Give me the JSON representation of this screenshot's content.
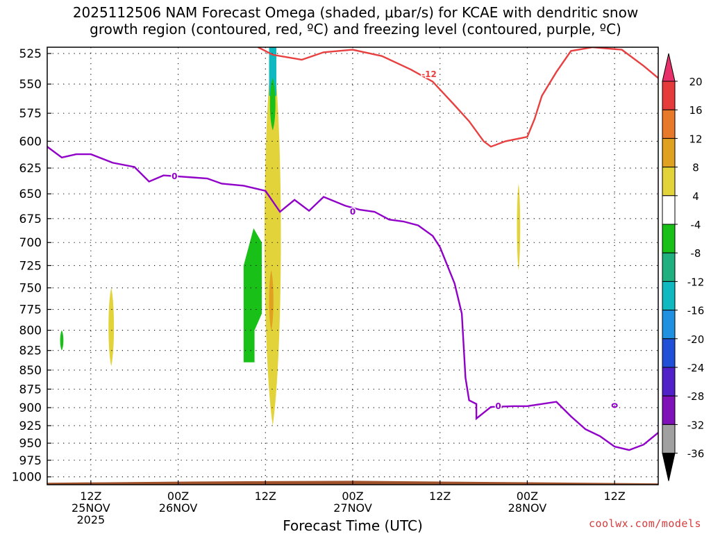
{
  "title": {
    "line1": "2025112506 NAM Forecast Omega (shaded, μbar/s) for KCAE with dendritic snow",
    "line2": "growth region (contoured, red, ºC) and freezing level (contoured, purple, ºC)"
  },
  "watermark": "coolwx.com/models",
  "chart_data": {
    "type": "time-height cross section",
    "title": "2025112506 NAM Forecast Omega (shaded, μbar/s) for KCAE with dendritic snow growth region (contoured, red, ºC) and freezing level (contoured, purple, ºC)",
    "xlabel": "Forecast Time (UTC)",
    "ylabel": "",
    "x_range_hours": [
      0,
      84
    ],
    "y_axis": {
      "scale": "pressure (hPa), inverted",
      "range": [
        1000,
        525
      ]
    },
    "y_ticks": [
      525,
      550,
      575,
      600,
      625,
      650,
      675,
      700,
      725,
      750,
      775,
      800,
      825,
      850,
      875,
      900,
      925,
      950,
      975,
      1000
    ],
    "x_ticks": [
      {
        "hour": 6,
        "lines": [
          "12Z",
          "25NOV",
          "2025"
        ]
      },
      {
        "hour": 18,
        "lines": [
          "00Z",
          "26NOV"
        ]
      },
      {
        "hour": 30,
        "lines": [
          "12Z"
        ]
      },
      {
        "hour": 42,
        "lines": [
          "00Z",
          "27NOV"
        ]
      },
      {
        "hour": 54,
        "lines": [
          "12Z"
        ]
      },
      {
        "hour": 66,
        "lines": [
          "00Z",
          "28NOV"
        ]
      },
      {
        "hour": 78,
        "lines": [
          "12Z"
        ]
      }
    ],
    "grid": true,
    "colorbar": {
      "labels": [
        "20",
        "16",
        "12",
        "8",
        "4",
        "-4",
        "-8",
        "-12",
        "-16",
        "-20",
        "-24",
        "-28",
        "-32",
        "-36"
      ],
      "colors": [
        "#e8306a",
        "#e53b3b",
        "#e8782a",
        "#e0a020",
        "#e3d33a",
        "#ffffff",
        "#18c018",
        "#20b080",
        "#10b8c0",
        "#2090e0",
        "#2050d8",
        "#5020c8",
        "#8010b8",
        "#a0a0a0",
        "#000000"
      ]
    },
    "freezing_level_0C": {
      "color": "#9000c8",
      "label": "0",
      "points": [
        [
          0,
          605
        ],
        [
          2,
          615
        ],
        [
          4,
          612
        ],
        [
          6,
          612
        ],
        [
          9,
          620
        ],
        [
          12,
          624
        ],
        [
          14,
          638
        ],
        [
          16,
          632
        ],
        [
          18,
          633
        ],
        [
          20,
          634
        ],
        [
          22,
          635
        ],
        [
          24,
          640
        ],
        [
          27,
          642
        ],
        [
          30,
          647
        ],
        [
          32,
          668
        ],
        [
          34,
          656
        ],
        [
          36,
          667
        ],
        [
          38,
          653
        ],
        [
          41,
          662
        ],
        [
          43,
          666
        ],
        [
          45,
          668
        ],
        [
          47,
          676
        ],
        [
          49,
          678
        ],
        [
          51,
          682
        ],
        [
          53,
          693
        ],
        [
          54,
          705
        ],
        [
          56,
          745
        ],
        [
          57,
          780
        ],
        [
          57.5,
          860
        ],
        [
          58,
          890
        ],
        [
          59,
          895
        ],
        [
          59,
          915
        ],
        [
          61,
          899
        ],
        [
          64,
          898
        ],
        [
          66,
          898
        ],
        [
          70,
          892
        ],
        [
          72,
          912
        ],
        [
          74,
          930
        ],
        [
          76,
          940
        ],
        [
          78,
          955
        ],
        [
          80,
          960
        ],
        [
          82,
          952
        ],
        [
          84,
          935
        ]
      ]
    },
    "dgz_minus12C": {
      "color": "#e84040",
      "label": "-12",
      "points": [
        [
          29,
          520
        ],
        [
          31,
          526
        ],
        [
          33,
          528
        ],
        [
          35,
          530
        ],
        [
          38,
          524
        ],
        [
          42,
          522
        ],
        [
          46,
          527
        ],
        [
          50,
          538
        ],
        [
          53,
          548
        ],
        [
          56,
          568
        ],
        [
          58,
          582
        ],
        [
          60,
          600
        ],
        [
          61,
          605
        ],
        [
          63,
          600
        ],
        [
          66,
          596
        ],
        [
          67,
          580
        ],
        [
          68,
          560
        ],
        [
          70,
          540
        ],
        [
          72,
          523
        ],
        [
          75,
          518
        ],
        [
          79,
          522
        ],
        [
          82,
          535
        ],
        [
          84,
          545
        ]
      ]
    },
    "omega_features_ubar_per_s": [
      {
        "name": "rising motion -4 to -8",
        "hour_range": [
          1.7,
          2.3
        ],
        "pressure_range": [
          800,
          825
        ],
        "value_range": [
          -8,
          -4
        ]
      },
      {
        "name": "sinking motion 4 to 8",
        "hour_range": [
          8.3,
          9.3
        ],
        "pressure_range": [
          750,
          845
        ],
        "value_range": [
          4,
          8
        ]
      },
      {
        "name": "rising motion -4 to -8",
        "hour_range": [
          27,
          29.5
        ],
        "pressure_range": [
          685,
          840
        ],
        "value_range": [
          -8,
          -4
        ]
      },
      {
        "name": "sinking motion 4 to 12",
        "hour_range": [
          29.5,
          32.5
        ],
        "pressure_range": [
          520,
          925
        ],
        "value_range": [
          4,
          12
        ]
      },
      {
        "name": "rising motion -4 to -16",
        "hour_range": [
          30.5,
          31.5
        ],
        "pressure_range": [
          520,
          590
        ],
        "value_range": [
          -16,
          -4
        ]
      },
      {
        "name": "sinking motion 4 to 8",
        "hour_range": [
          64.5,
          65.1
        ],
        "pressure_range": [
          640,
          730
        ],
        "value_range": [
          4,
          8
        ]
      }
    ],
    "terrain": {
      "color": "#a0522d",
      "surface_pressure_hPa": [
        1009,
        1007,
        1006,
        1008,
        1010
      ]
    }
  }
}
